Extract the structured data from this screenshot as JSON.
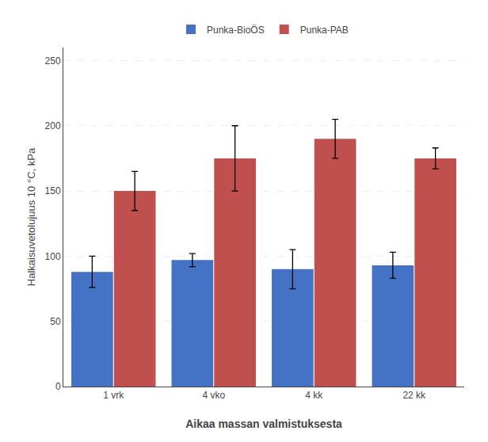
{
  "chart_data": {
    "type": "bar",
    "categories": [
      "1 vrk",
      "4 vko",
      "4 kk",
      "22 kk"
    ],
    "series": [
      {
        "name": "Punka-BioÖS",
        "color": "#4472C4",
        "values": [
          88,
          97,
          90,
          93
        ],
        "errors": [
          12,
          5,
          15,
          10
        ]
      },
      {
        "name": "Punka-PAB",
        "color": "#C0504D",
        "values": [
          150,
          175,
          190,
          175
        ],
        "errors": [
          15,
          25,
          15,
          8
        ]
      }
    ],
    "xlabel": "Aikaa massan valmistuksesta",
    "ylabel": "Halkaisuvetolujuus 10 °C, kPa",
    "ylim": [
      0,
      260
    ],
    "yticks": [
      0,
      50,
      100,
      150,
      200,
      250
    ],
    "grid": true,
    "legend": "top"
  }
}
